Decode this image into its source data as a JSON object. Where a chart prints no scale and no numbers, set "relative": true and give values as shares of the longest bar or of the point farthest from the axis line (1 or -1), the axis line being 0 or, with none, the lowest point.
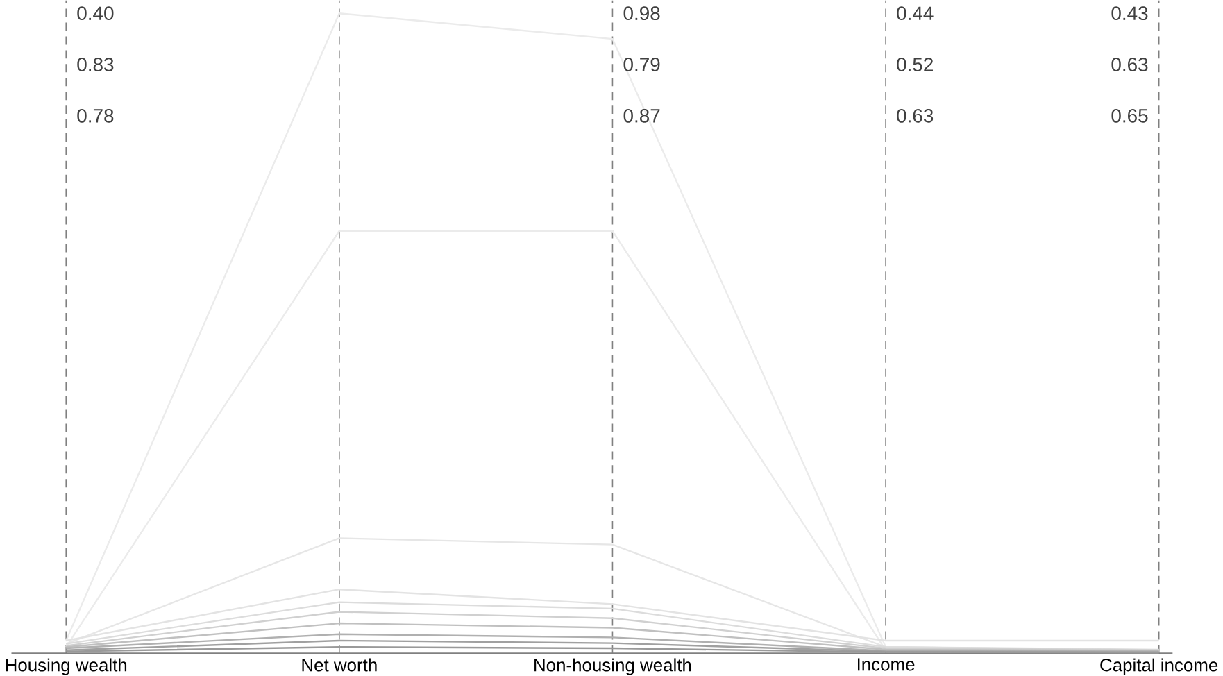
{
  "chart_data": {
    "type": "line",
    "relative": true,
    "grid": "x",
    "line_style": "solid",
    "marker": "none",
    "categories": [
      "Housing wealth",
      "Net worth",
      "Non-housing wealth",
      "Income",
      "Capital income"
    ],
    "series": [
      {
        "color": "#ebebeb",
        "values": [
          0.02,
          1.0,
          0.96,
          0.01,
          0.005
        ]
      },
      {
        "color": "#ebebeb",
        "values": [
          0.01,
          0.66,
          0.66,
          0.005,
          0.003
        ]
      },
      {
        "color": "#e6e6e6",
        "values": [
          0.015,
          0.18,
          0.17,
          0.01,
          0.005
        ]
      },
      {
        "color": "#e3e3e3",
        "values": [
          0.02,
          0.1,
          0.077,
          0.02,
          0.02
        ]
      },
      {
        "color": "#dcdcdc",
        "values": [
          0.015,
          0.08,
          0.07,
          0.01,
          0.006
        ]
      },
      {
        "color": "#d0d0d0",
        "values": [
          0.012,
          0.065,
          0.055,
          0.008,
          0.005
        ]
      },
      {
        "color": "#c0c0c0",
        "values": [
          0.01,
          0.047,
          0.04,
          0.006,
          0.004
        ]
      },
      {
        "color": "#b0b0b0",
        "values": [
          0.008,
          0.03,
          0.025,
          0.004,
          0.003
        ]
      },
      {
        "color": "#a0a0a0",
        "values": [
          0.005,
          0.02,
          0.016,
          0.003,
          0.002
        ]
      },
      {
        "color": "#999999",
        "values": [
          0.003,
          0.01,
          0.008,
          0.002,
          0.001
        ]
      }
    ],
    "annotations": [
      "0.40",
      "0.83",
      "0.78",
      "0.98",
      "0.79",
      "0.87",
      "0.44",
      "0.52",
      "0.63",
      "0.43",
      "0.63",
      "0.65"
    ]
  }
}
